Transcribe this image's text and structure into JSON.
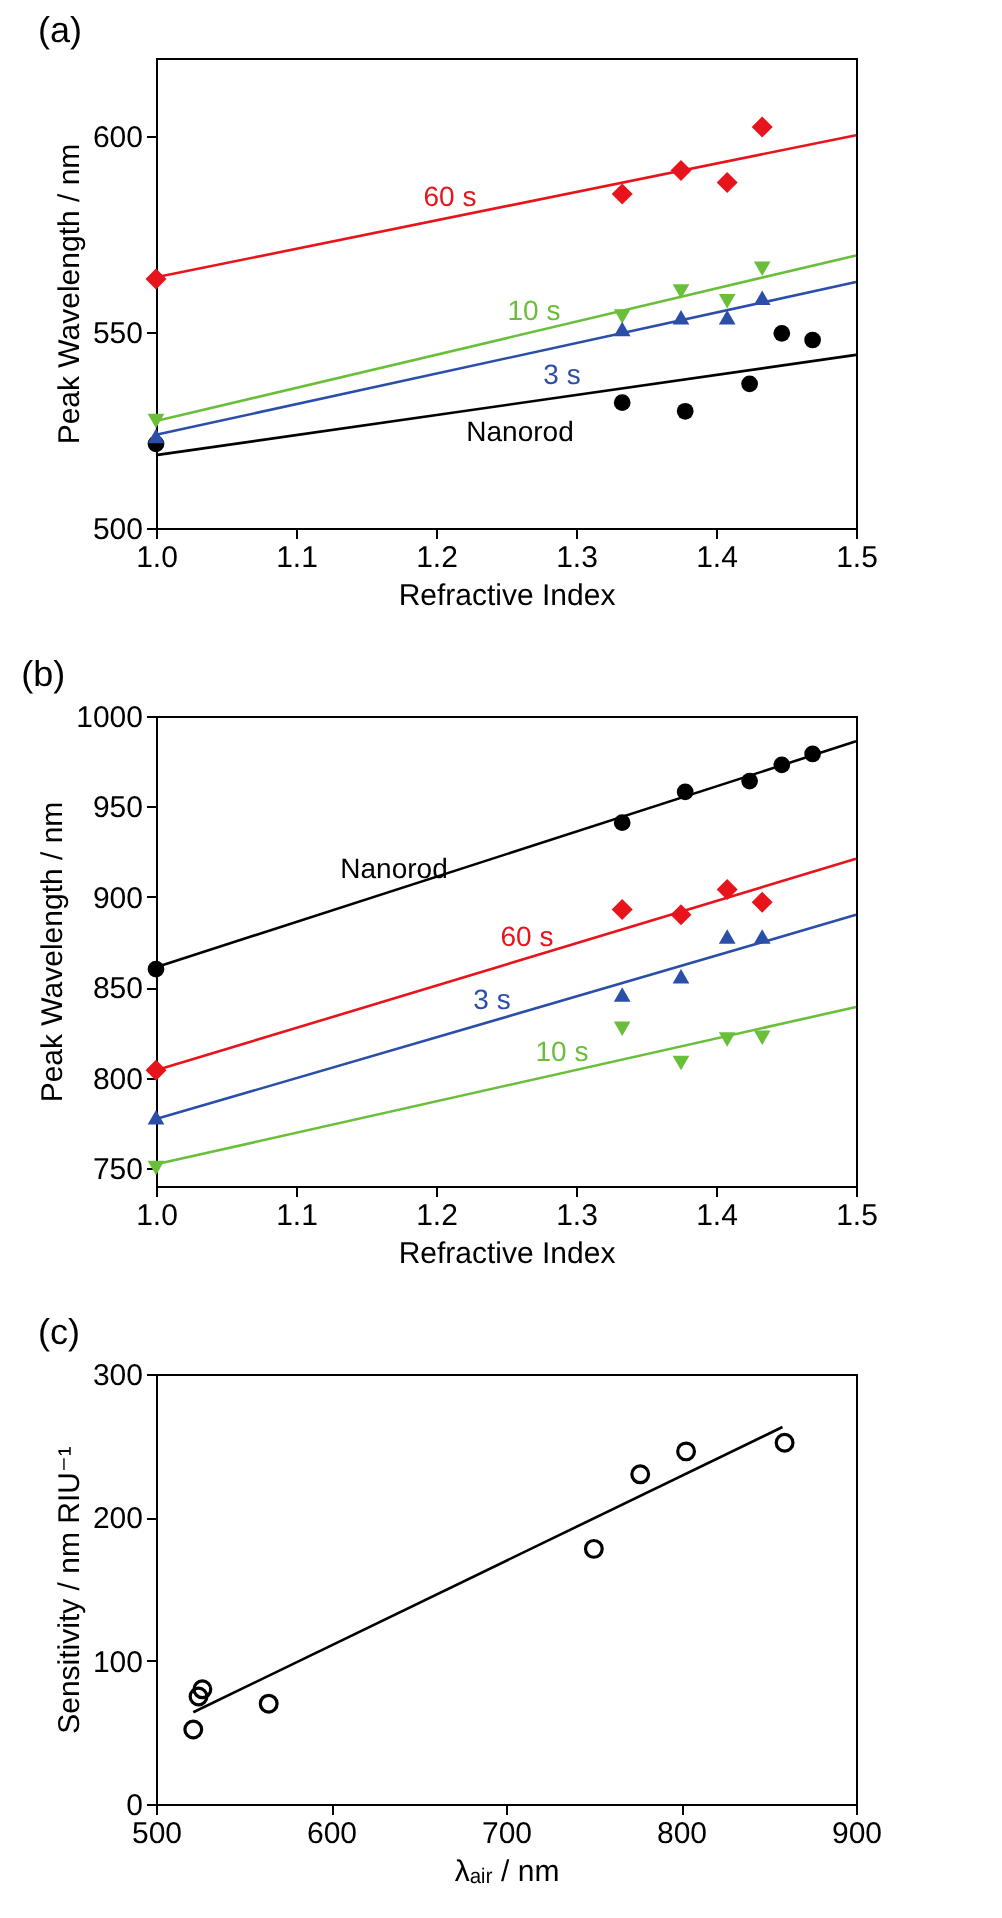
{
  "chart_data": [
    {
      "type": "scatter",
      "title": "(a)",
      "xlabel": "Refractive Index",
      "ylabel": "Peak Wavelength / nm",
      "xlim": [
        1.0,
        1.5
      ],
      "xticks": [
        {
          "value": 1,
          "label": "1.0"
        },
        1.1,
        1.2,
        1.3,
        1.4,
        1.5
      ],
      "ylim": [
        500,
        620
      ],
      "yticks": [
        500,
        550,
        600
      ],
      "series": [
        {
          "type": "scatter",
          "marker": "circle",
          "color": "#000000",
          "x": [
            1.0,
            1.333,
            1.378,
            1.424,
            1.447,
            1.469
          ],
          "values": [
            521.5,
            532,
            529.8,
            536.8,
            549.7,
            548
          ]
        },
        {
          "type": "scatter",
          "marker": "diamond",
          "color": "#e8141c",
          "x": [
            1.0,
            1.333,
            1.375,
            1.408,
            1.433
          ],
          "values": [
            563.6,
            585.3,
            591.3,
            588.2,
            602.4
          ]
        },
        {
          "type": "scatter",
          "marker": "triangle-down",
          "color": "#6abf3a",
          "x": [
            1.0,
            1.333,
            1.375,
            1.408,
            1.433
          ],
          "values": [
            527.3,
            554,
            560.4,
            557.9,
            566.2
          ]
        },
        {
          "type": "scatter",
          "marker": "triangle",
          "color": "#2b4fa8",
          "x": [
            1.0,
            1.333,
            1.375,
            1.408,
            1.433
          ],
          "values": [
            523.5,
            550.8,
            553.8,
            553.8,
            558.8
          ]
        },
        {
          "type": "line",
          "name": "60 s",
          "color": "#e8141c",
          "x": [
            1.0,
            1.5
          ],
          "values": [
            564,
            600.3
          ]
        },
        {
          "type": "line",
          "name": "10 s",
          "color": "#6abf3a",
          "x": [
            1.0,
            1.5
          ],
          "values": [
            527.3,
            569.6
          ]
        },
        {
          "type": "line",
          "name": "3 s",
          "color": "#2b4fa8",
          "x": [
            1.0,
            1.5
          ],
          "values": [
            523.8,
            562.8
          ]
        },
        {
          "type": "line",
          "name": "Nanorod",
          "color": "#000000",
          "x": [
            1.0,
            1.5
          ],
          "values": [
            518.6,
            544.2
          ]
        }
      ]
    },
    {
      "type": "scatter",
      "title": "(b)",
      "xlabel": "Refractive Index",
      "ylabel": "Peak Wavelength / nm",
      "xlim": [
        1.0,
        1.5
      ],
      "xticks": [
        {
          "value": 1,
          "label": "1.0"
        },
        1.1,
        1.2,
        1.3,
        1.4,
        1.5
      ],
      "ylim": [
        740,
        1000
      ],
      "yticks": [
        750,
        800,
        850,
        900,
        950,
        1000
      ],
      "series": [
        {
          "type": "scatter",
          "marker": "circle",
          "color": "#000000",
          "x": [
            1.0,
            1.333,
            1.378,
            1.424,
            1.447,
            1.469
          ],
          "values": [
            860,
            941,
            958,
            964,
            973,
            979
          ]
        },
        {
          "type": "scatter",
          "marker": "diamond",
          "color": "#e8141c",
          "x": [
            1.0,
            1.333,
            1.375,
            1.408,
            1.433
          ],
          "values": [
            804,
            893,
            890,
            904,
            897
          ]
        },
        {
          "type": "scatter",
          "marker": "triangle",
          "color": "#2b4fa8",
          "x": [
            1.0,
            1.333,
            1.375,
            1.408,
            1.433
          ],
          "values": [
            778,
            846,
            856,
            878,
            878
          ]
        },
        {
          "type": "scatter",
          "marker": "triangle-down",
          "color": "#6abf3a",
          "x": [
            1.0,
            1.333,
            1.375,
            1.408,
            1.433
          ],
          "values": [
            750,
            827,
            808,
            821,
            822
          ]
        },
        {
          "type": "line",
          "name": "Nanorod",
          "color": "#000000",
          "x": [
            1.0,
            1.5
          ],
          "values": [
            861,
            986
          ]
        },
        {
          "type": "line",
          "name": "60 s",
          "color": "#e8141c",
          "x": [
            1.0,
            1.5
          ],
          "values": [
            804,
            921
          ]
        },
        {
          "type": "line",
          "name": "3 s",
          "color": "#2b4fa8",
          "x": [
            1.0,
            1.5
          ],
          "values": [
            777,
            890
          ]
        },
        {
          "type": "line",
          "name": "10 s",
          "color": "#6abf3a",
          "x": [
            1.0,
            1.5
          ],
          "values": [
            752,
            839
          ]
        }
      ]
    },
    {
      "type": "scatter",
      "title": "(c)",
      "xlabel": "λₐᵢᵣ / nm",
      "ylabel": "Sensitivity / nm RIU⁻¹",
      "xlim": [
        500,
        900
      ],
      "xticks": [
        500,
        600,
        700,
        800,
        900
      ],
      "ylim": [
        0,
        300
      ],
      "yticks": [
        0,
        100,
        200,
        300
      ],
      "series": [
        {
          "type": "scatter",
          "marker": "circle",
          "color": "#000000",
          "x": [
            521.3,
            524.3,
            526.5,
            564.4,
            750.2,
            776.7,
            802.9,
            859.2
          ],
          "values": [
            52,
            75,
            80,
            70,
            178,
            230,
            246,
            252
          ]
        },
        {
          "type": "line",
          "color": "#000000",
          "x": [
            521.3,
            858
          ],
          "values": [
            64,
            263
          ]
        }
      ]
    }
  ]
}
